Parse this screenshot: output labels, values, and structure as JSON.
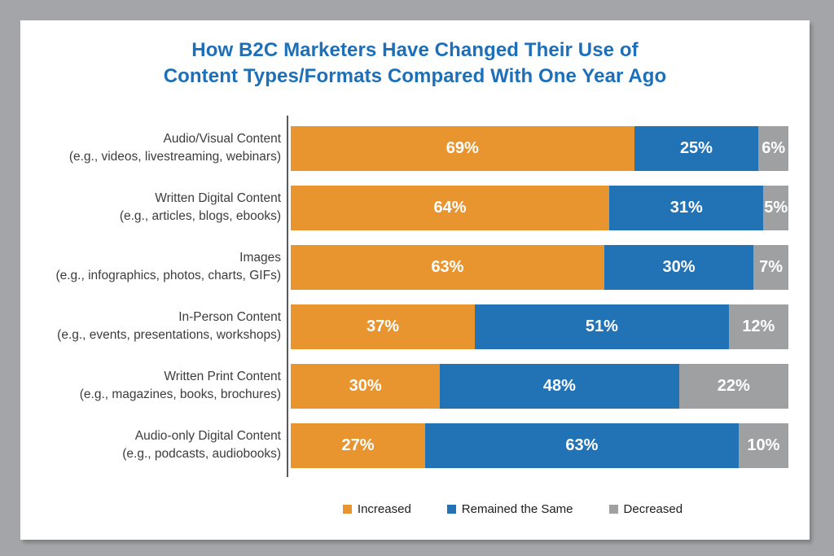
{
  "header": {
    "title_line1": "How B2C Marketers Have Changed Their Use of",
    "title_line2": "Content Types/Formats Compared With One Year Ago"
  },
  "chart_data": {
    "type": "bar",
    "orientation": "horizontal-stacked",
    "title": "How B2C Marketers Have Changed Their Use of Content Types/Formats Compared With One Year Ago",
    "categories": [
      {
        "label": "Audio/Visual Content",
        "sublabel": "(e.g., videos, livestreaming, webinars)"
      },
      {
        "label": "Written Digital Content",
        "sublabel": "(e.g., articles, blogs, ebooks)"
      },
      {
        "label": "Images",
        "sublabel": "(e.g., infographics, photos, charts, GIFs)"
      },
      {
        "label": "In-Person Content",
        "sublabel": "(e.g., events, presentations, workshops)"
      },
      {
        "label": "Written Print Content",
        "sublabel": "(e.g., magazines, books, brochures)"
      },
      {
        "label": "Audio-only Digital Content",
        "sublabel": "(e.g., podcasts, audiobooks)"
      }
    ],
    "series": [
      {
        "name": "Increased",
        "color": "#E8952F",
        "values": [
          69,
          64,
          63,
          37,
          30,
          27
        ]
      },
      {
        "name": "Remained the Same",
        "color": "#2273B6",
        "values": [
          25,
          31,
          30,
          51,
          48,
          63
        ]
      },
      {
        "name": "Decreased",
        "color": "#9EA0A2",
        "values": [
          6,
          5,
          7,
          12,
          22,
          10
        ]
      }
    ],
    "value_suffix": "%",
    "xlim": [
      0,
      100
    ],
    "grid": false,
    "legend_position": "bottom",
    "colors": {
      "title_text": "#1C6FB8",
      "category_text": "#3C3C3C",
      "value_text": "#FFFFFF",
      "frame_background": "#A3A5A8",
      "card_background": "#FFFFFF",
      "axis_line": "#58595B"
    }
  }
}
